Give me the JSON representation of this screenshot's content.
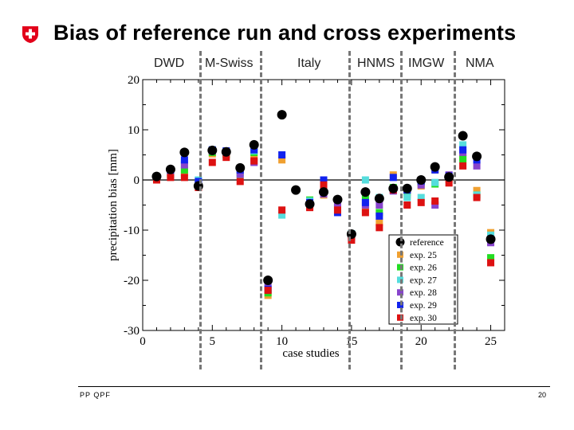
{
  "header": {
    "title": "Bias of reference run and cross experiments",
    "logo_icon": "swiss-cross-icon",
    "logo_color": "#e2001a"
  },
  "groups": [
    "DWD",
    "M-Swiss",
    "Italy",
    "HNMS",
    "IMGW",
    "NMA"
  ],
  "footer": {
    "left": "PP QPF",
    "page": "20"
  },
  "chart_data": {
    "type": "scatter",
    "xlabel": "case studies",
    "ylabel": "precipitation bias [mm]",
    "xlim": [
      0,
      26
    ],
    "ylim": [
      -30,
      20
    ],
    "xticks": [
      0,
      5,
      10,
      15,
      20,
      25
    ],
    "yticks": [
      20,
      10,
      0,
      -10,
      -20,
      -30
    ],
    "x": [
      1,
      2,
      3,
      4,
      5,
      6,
      7,
      8,
      9,
      10,
      11,
      12,
      13,
      14,
      15,
      16,
      17,
      18,
      19,
      20,
      21,
      22,
      23,
      24,
      25
    ],
    "series": [
      {
        "name": "reference",
        "color": "#000000",
        "marker": "circle",
        "values": [
          0.7,
          2.1,
          5.5,
          -1.2,
          5.9,
          5.6,
          2.4,
          7.0,
          -20.0,
          13.0,
          -2.0,
          -4.8,
          -2.4,
          -3.9,
          -10.8,
          -2.4,
          -3.7,
          -1.7,
          -1.7,
          0.0,
          2.6,
          0.6,
          8.8,
          4.7,
          -11.8
        ]
      },
      {
        "name": "exp. 25",
        "color": "#f0a030",
        "marker": "square",
        "values": [
          0.3,
          1.0,
          1.5,
          -0.7,
          5.2,
          5.2,
          1.8,
          4.5,
          -23.0,
          4.0,
          null,
          -5.0,
          -3.0,
          -5.0,
          -11.3,
          -6.0,
          -8.5,
          1.0,
          -3.0,
          -1.2,
          2.0,
          0.2,
          4.5,
          -2.1,
          -10.5
        ]
      },
      {
        "name": "exp. 26",
        "color": "#22dd22",
        "marker": "square",
        "values": [
          0.2,
          1.2,
          2.0,
          -1.0,
          5.5,
          5.0,
          1.5,
          5.5,
          -22.5,
          null,
          null,
          -4.0,
          -2.0,
          -4.5,
          -11.0,
          -3.5,
          -6.5,
          -1.5,
          -2.5,
          -0.5,
          -0.8,
          0.5,
          4.2,
          -3.0,
          -15.5
        ]
      },
      {
        "name": "exp. 27",
        "color": "#55dddd",
        "marker": "square",
        "values": [
          0.4,
          1.8,
          3.5,
          0.0,
          6.0,
          5.6,
          1.0,
          5.8,
          -21.5,
          -7.0,
          null,
          -4.2,
          -1.5,
          -5.5,
          -10.7,
          0.0,
          -3.5,
          -2.0,
          -3.5,
          -3.5,
          -0.5,
          0.4,
          7.0,
          -3.0,
          -11.0
        ]
      },
      {
        "name": "exp. 28",
        "color": "#8844cc",
        "marker": "square",
        "values": [
          0.5,
          1.5,
          3.0,
          -0.8,
          5.8,
          5.5,
          1.2,
          3.5,
          -21.0,
          null,
          null,
          -5.2,
          -2.8,
          -5.0,
          -11.5,
          -5.0,
          -5.0,
          -2.2,
          -2.0,
          -1.0,
          -5.0,
          1.0,
          5.5,
          2.8,
          -12.5
        ]
      },
      {
        "name": "exp. 29",
        "color": "#1122ee",
        "marker": "square",
        "values": [
          0.6,
          2.0,
          4.0,
          -0.3,
          6.0,
          5.8,
          2.0,
          6.0,
          -21.8,
          5.0,
          null,
          -4.5,
          0.0,
          -6.5,
          -11.0,
          -4.5,
          -7.2,
          0.5,
          -2.0,
          -0.2,
          2.0,
          0.8,
          6.0,
          4.0,
          -11.8
        ]
      },
      {
        "name": "exp. 30",
        "color": "#dd1111",
        "marker": "square",
        "values": [
          0.0,
          0.5,
          0.5,
          -1.5,
          3.5,
          4.5,
          -0.3,
          3.8,
          -22.0,
          -6.0,
          null,
          -5.5,
          -1.0,
          -6.0,
          -12.0,
          -6.5,
          -9.5,
          -2.0,
          -5.0,
          -4.5,
          -4.2,
          -0.6,
          2.8,
          -3.5,
          -16.5
        ]
      }
    ]
  }
}
